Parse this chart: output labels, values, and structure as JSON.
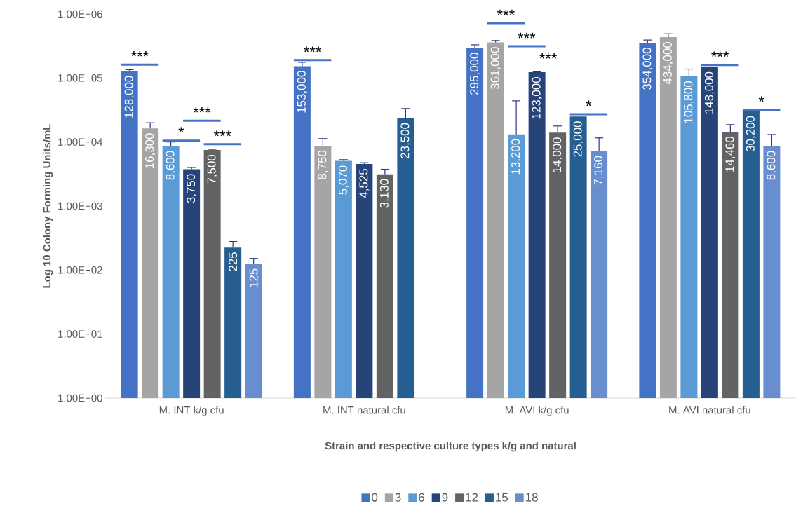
{
  "chart_data": {
    "type": "bar",
    "xlabel": "Strain and respective culture types k/g and natural",
    "ylabel": "Log 10 Colony Forming Units/mL",
    "categories": [
      "M. INT k/g cfu",
      "M. INT natural cfu",
      "M. AVI k/g cfu",
      "M. AVI natural cfu"
    ],
    "series": [
      {
        "name": "0",
        "color": "#4472c4",
        "values": [
          128000,
          153000,
          295000,
          354000
        ],
        "value_labels": [
          "128,000",
          "153,000",
          "295,000",
          "354,000"
        ],
        "errors": [
          [
            128000,
            135000
          ],
          [
            153000,
            176000
          ],
          [
            295000,
            330000
          ],
          [
            354000,
            392000
          ]
        ]
      },
      {
        "name": "3",
        "color": "#a5a5a5",
        "values": [
          16300,
          8750,
          361000,
          434000
        ],
        "value_labels": [
          "16,300",
          "8,750",
          "361,000",
          "434,000"
        ],
        "errors": [
          [
            16300,
            20000
          ],
          [
            8750,
            11300
          ],
          [
            361000,
            385000
          ],
          [
            434000,
            490000
          ]
        ]
      },
      {
        "name": "6",
        "color": "#5b9bd5",
        "values": [
          8600,
          5070,
          13200,
          105800
        ],
        "value_labels": [
          "8,600",
          "5,070",
          "13,200",
          "105,800"
        ],
        "errors": [
          [
            8600,
            10000
          ],
          [
            5070,
            5300
          ],
          [
            13200,
            44000
          ],
          [
            105800,
            138000
          ]
        ]
      },
      {
        "name": "9",
        "color": "#264478",
        "values": [
          3750,
          4525,
          123000,
          148000
        ],
        "value_labels": [
          "3,750",
          "4,525",
          "123,000",
          "148,000"
        ],
        "errors": [
          [
            3750,
            4000
          ],
          [
            4525,
            4750
          ],
          [
            123000,
            125000
          ],
          null
        ]
      },
      {
        "name": "12",
        "color": "#636363",
        "values": [
          7500,
          3130,
          14000,
          14460
        ],
        "value_labels": [
          "7,500",
          "3,130",
          "14,000",
          "14,460"
        ],
        "errors": [
          [
            7500,
            7700
          ],
          [
            3130,
            3750
          ],
          [
            14000,
            17800
          ],
          [
            14460,
            18700
          ]
        ]
      },
      {
        "name": "15",
        "color": "#255e91",
        "values": [
          225,
          23500,
          25000,
          30200
        ],
        "value_labels": [
          "225",
          "23,500",
          "25,000",
          "30,200"
        ],
        "errors": [
          [
            225,
            279
          ],
          [
            23500,
            33400
          ],
          null,
          null
        ]
      },
      {
        "name": "18",
        "color": "#698ed0",
        "values": [
          125,
          null,
          7160,
          8600
        ],
        "value_labels": [
          "125",
          null,
          "7,160",
          "8,600"
        ],
        "errors": [
          [
            125,
            152
          ],
          null,
          [
            7160,
            11600
          ],
          [
            8600,
            13100
          ]
        ]
      }
    ],
    "log": true,
    "ylim": [
      1,
      1000000
    ],
    "yticks": [
      {
        "value": 1,
        "label": "1.00E+00"
      },
      {
        "value": 10,
        "label": "1.00E+01"
      },
      {
        "value": 100,
        "label": "1.00E+02"
      },
      {
        "value": 1000,
        "label": "1.00E+03"
      },
      {
        "value": 10000,
        "label": "1.00E+04"
      },
      {
        "value": 100000,
        "label": "1.00E+05"
      },
      {
        "value": 1000000,
        "label": "1.00E+06"
      }
    ],
    "grid": false,
    "legend": "bottom",
    "annotations": [
      "***",
      "*",
      "***",
      "***",
      "***",
      "***",
      "***",
      "***",
      "*",
      "***",
      "*"
    ]
  }
}
